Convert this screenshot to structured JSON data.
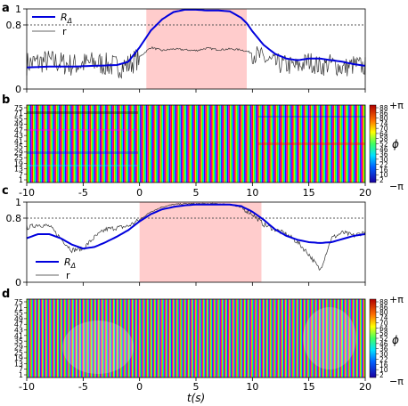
{
  "figure": {
    "x_tick_labels": [
      "-10",
      "-5",
      "0",
      "5",
      "10",
      "15",
      "20"
    ],
    "xlabel": "t(s)"
  },
  "chart_data": [
    {
      "panel": "a",
      "type": "line",
      "x_range": [
        -10,
        20
      ],
      "ylim": [
        0,
        1
      ],
      "y_tick_labels": [
        "0",
        "0.8",
        "1"
      ],
      "threshold": 0.8,
      "shaded_interval": [
        0.6,
        9.5
      ],
      "legend": [
        {
          "label": "R",
          "subscript": "Δ",
          "color": "#0000dd"
        },
        {
          "label": "r",
          "color": "#333333"
        }
      ],
      "series": [
        {
          "name": "R_Δ",
          "color": "#0000dd",
          "x": [
            -10,
            -8,
            -6,
            -4,
            -2,
            -1,
            0,
            1,
            2,
            3,
            4,
            5,
            6,
            7,
            8,
            9,
            9.5,
            10,
            11,
            12,
            13,
            14,
            15,
            16,
            17,
            18,
            19,
            20
          ],
          "y": [
            0.27,
            0.28,
            0.28,
            0.29,
            0.3,
            0.34,
            0.52,
            0.73,
            0.87,
            0.96,
            0.99,
            0.99,
            0.98,
            0.98,
            0.97,
            0.89,
            0.82,
            0.72,
            0.55,
            0.44,
            0.38,
            0.36,
            0.38,
            0.38,
            0.36,
            0.34,
            0.31,
            0.29
          ]
        },
        {
          "name": "r",
          "color": "#333333",
          "noisy_before": [
            -10,
            0
          ],
          "noisy_after": [
            10,
            20
          ],
          "x": [
            -10,
            -8,
            -6,
            -4,
            -2,
            -1,
            0,
            1,
            2,
            3,
            4,
            5,
            6,
            7,
            8,
            9,
            10,
            11,
            12,
            13,
            14,
            15,
            16,
            17,
            18,
            19,
            20
          ],
          "y": [
            0.32,
            0.35,
            0.3,
            0.33,
            0.28,
            0.3,
            0.4,
            0.52,
            0.48,
            0.5,
            0.49,
            0.48,
            0.51,
            0.49,
            0.5,
            0.49,
            0.45,
            0.38,
            0.32,
            0.3,
            0.28,
            0.35,
            0.28,
            0.32,
            0.26,
            0.3,
            0.28
          ]
        }
      ]
    },
    {
      "panel": "b",
      "type": "heatmap",
      "x_range": [
        -10,
        20
      ],
      "y_tick_labels": [
        "1",
        "7",
        "13",
        "19",
        "25",
        "29",
        "35",
        "41",
        "43",
        "47",
        "49",
        "55",
        "71",
        "75"
      ],
      "colorbar": {
        "ticks": [
          "2",
          "10",
          "16",
          "22",
          "30",
          "36",
          "46",
          "52",
          "58",
          "64",
          "70",
          "74",
          "80",
          "86",
          "88"
        ],
        "label": "ϕ",
        "top_label": "+π",
        "bottom_label": "−π"
      }
    },
    {
      "panel": "c",
      "type": "line",
      "x_range": [
        -10,
        20
      ],
      "ylim": [
        0,
        1
      ],
      "y_tick_labels": [
        "0",
        "0.8",
        "1"
      ],
      "threshold": 0.8,
      "shaded_interval": [
        0,
        10.8
      ],
      "legend": [
        {
          "label": "R",
          "subscript": "Δ",
          "color": "#0000dd"
        },
        {
          "label": "r",
          "color": "#333333"
        }
      ],
      "series": [
        {
          "name": "R_Δ",
          "color": "#0000dd",
          "x": [
            -10,
            -9,
            -8,
            -7,
            -6,
            -5,
            -4,
            -3,
            -2,
            -1,
            0,
            1,
            2,
            3,
            4,
            5,
            6,
            7,
            8,
            9,
            10,
            11,
            12,
            13,
            14,
            15,
            16,
            17,
            18,
            19,
            20
          ],
          "y": [
            0.55,
            0.6,
            0.6,
            0.55,
            0.47,
            0.42,
            0.44,
            0.5,
            0.57,
            0.65,
            0.76,
            0.85,
            0.91,
            0.94,
            0.96,
            0.97,
            0.97,
            0.97,
            0.97,
            0.95,
            0.88,
            0.78,
            0.66,
            0.58,
            0.53,
            0.5,
            0.49,
            0.5,
            0.54,
            0.58,
            0.6
          ]
        },
        {
          "name": "r",
          "color": "#333333",
          "x": [
            -10,
            -9,
            -8,
            -7,
            -6,
            -5,
            -4,
            -3,
            -2,
            -1,
            0,
            1,
            2,
            3,
            4,
            5,
            6,
            7,
            8,
            9,
            10,
            11,
            12,
            13,
            14,
            15,
            16,
            17,
            18,
            19,
            20
          ],
          "y": [
            0.68,
            0.72,
            0.7,
            0.55,
            0.4,
            0.42,
            0.56,
            0.66,
            0.68,
            0.7,
            0.78,
            0.88,
            0.94,
            0.97,
            0.98,
            0.98,
            0.98,
            0.98,
            0.97,
            0.93,
            0.85,
            0.72,
            0.66,
            0.6,
            0.5,
            0.35,
            0.15,
            0.55,
            0.62,
            0.58,
            0.63
          ]
        }
      ]
    },
    {
      "panel": "d",
      "type": "heatmap",
      "x_range": [
        -10,
        20
      ],
      "y_tick_labels": [
        "1",
        "7",
        "13",
        "19",
        "25",
        "29",
        "35",
        "41",
        "43",
        "47",
        "49",
        "55",
        "71",
        "75"
      ],
      "colorbar": {
        "ticks": [
          "2",
          "10",
          "16",
          "22",
          "30",
          "36",
          "46",
          "52",
          "58",
          "64",
          "70",
          "74",
          "80",
          "86",
          "88"
        ],
        "label": "ϕ",
        "top_label": "+π",
        "bottom_label": "−π"
      }
    }
  ]
}
